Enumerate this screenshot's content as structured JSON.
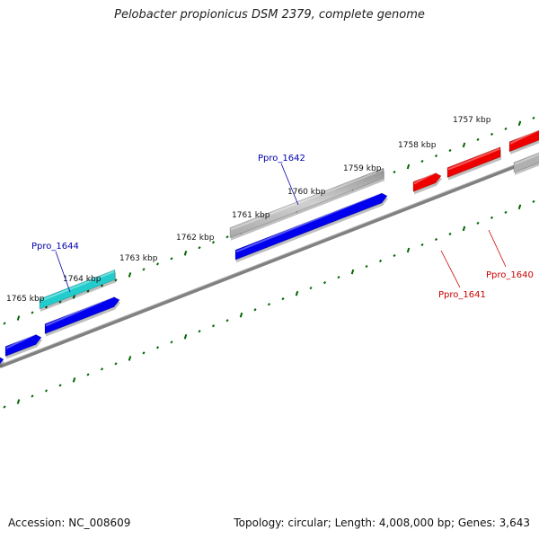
{
  "title": "Pelobacter propionicus DSM 2379, complete genome",
  "footer": {
    "accession": "Accession: NC_008609",
    "summary": "Topology: circular; Length: 4,008,000 bp; Genes: 3,643"
  },
  "kbp_labels": [
    "1757 kbp",
    "1758 kbp",
    "1759 kbp",
    "1760 kbp",
    "1761 kbp",
    "1762 kbp",
    "1763 kbp",
    "1764 kbp",
    "1765 kbp"
  ],
  "gene_labels": [
    {
      "id": "g1644",
      "text": "Ppro_1644",
      "color": "#0000aa"
    },
    {
      "id": "g1642",
      "text": "Ppro_1642",
      "color": "#0000aa"
    },
    {
      "id": "g1641",
      "text": "Ppro_1641",
      "color": "#cc0000"
    },
    {
      "id": "g1640",
      "text": "Ppro_1640",
      "color": "#cc0000"
    }
  ],
  "colors": {
    "backbone": "#777777",
    "forward_gene": "#0000ee",
    "reverse_gene": "#ee0000",
    "highlight_gene": "#22cccc",
    "other_gene": "#b0b0b0",
    "ticks": "#006600"
  }
}
